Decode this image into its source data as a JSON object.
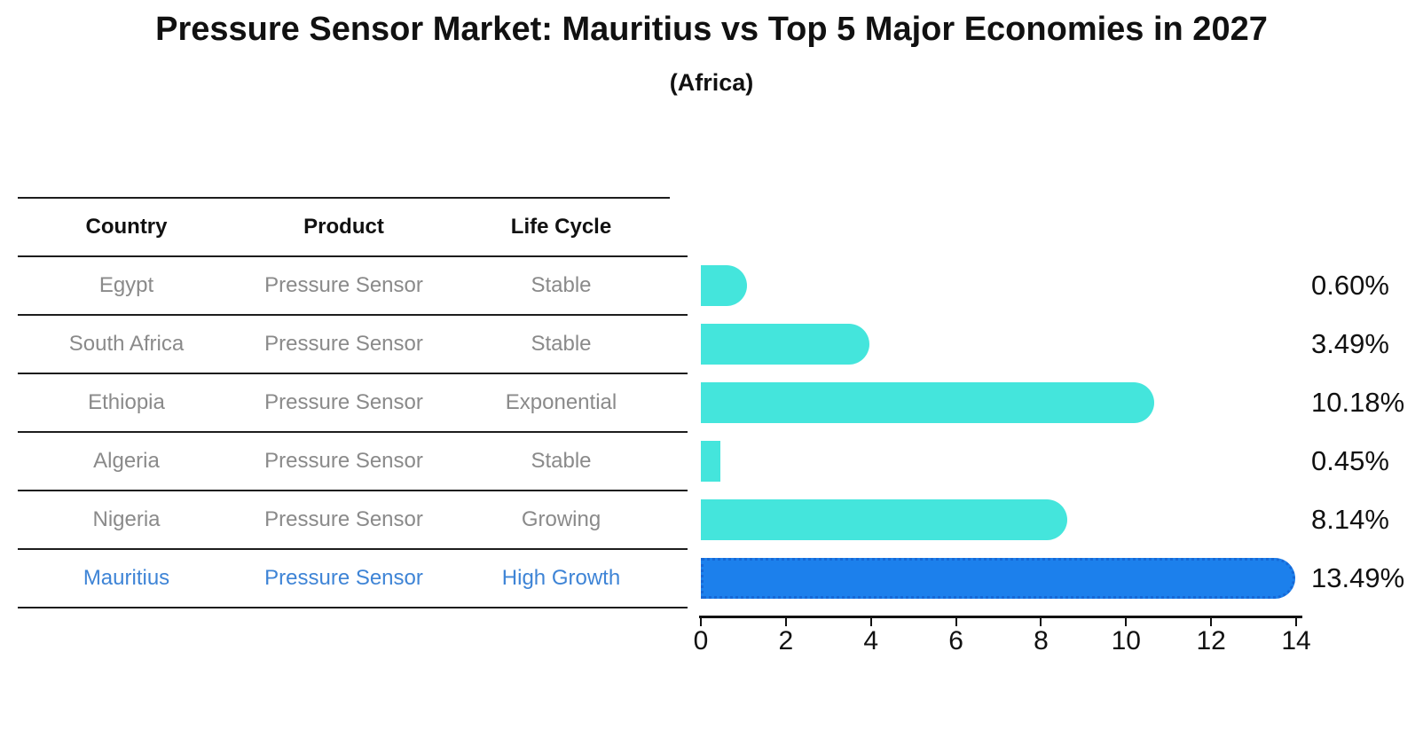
{
  "title": "Pressure Sensor Market: Mauritius vs Top 5 Major Economies in 2027",
  "subtitle": "(Africa)",
  "table": {
    "headers": [
      "Country",
      "Product",
      "Life Cycle"
    ],
    "rows": [
      {
        "country": "Egypt",
        "product": "Pressure Sensor",
        "life_cycle": "Stable",
        "highlight": false
      },
      {
        "country": "South Africa",
        "product": "Pressure Sensor",
        "life_cycle": "Stable",
        "highlight": false
      },
      {
        "country": "Ethiopia",
        "product": "Pressure Sensor",
        "life_cycle": "Exponential",
        "highlight": false
      },
      {
        "country": "Algeria",
        "product": "Pressure Sensor",
        "life_cycle": "Stable",
        "highlight": false
      },
      {
        "country": "Nigeria",
        "product": "Pressure Sensor",
        "life_cycle": "Growing",
        "highlight": false
      },
      {
        "country": "Mauritius",
        "product": "Pressure Sensor",
        "life_cycle": "High Growth",
        "highlight": true
      }
    ]
  },
  "chart_data": {
    "type": "bar",
    "orientation": "horizontal",
    "title": "Pressure Sensor Market: Mauritius vs Top 5 Major Economies in 2027",
    "subtitle": "(Africa)",
    "categories": [
      "Egypt",
      "South Africa",
      "Ethiopia",
      "Algeria",
      "Nigeria",
      "Mauritius"
    ],
    "values": [
      0.6,
      3.49,
      10.18,
      0.45,
      8.14,
      13.49
    ],
    "bar_labels": [
      "0.60%",
      "3.49%",
      "10.18%",
      "0.45%",
      "8.14%",
      "13.49%"
    ],
    "xlim": [
      0,
      14
    ],
    "xticks": [
      0,
      2,
      4,
      6,
      8,
      10,
      12,
      14
    ],
    "grid": false,
    "legend": false,
    "highlight_index": 5
  },
  "colors": {
    "bar": "#44e5dc",
    "highlight_bar": "#1c80ec",
    "highlight_border": "#1668d6",
    "highlight_text": "#3e84d6",
    "row_text": "#8a8a8a",
    "header_text": "#111111",
    "axis": "#111111"
  }
}
